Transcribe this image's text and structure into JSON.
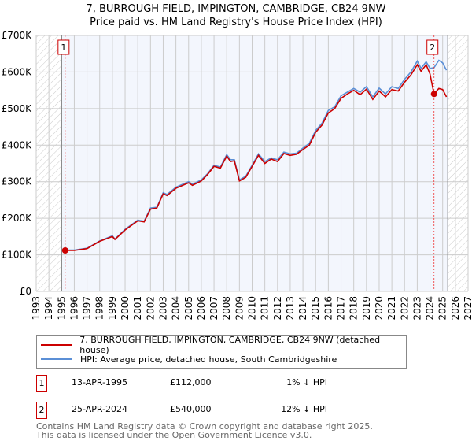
{
  "chart_data": {
    "type": "line",
    "title": "7, BURROUGH FIELD, IMPINGTON, CAMBRIDGE, CB24 9NW",
    "subtitle": "Price paid vs. HM Land Registry's House Price Index (HPI)",
    "xlim": [
      1993,
      2027
    ],
    "ylim": [
      0,
      700000
    ],
    "x_ticks": [
      "1993",
      "1994",
      "1995",
      "1996",
      "1997",
      "1998",
      "1999",
      "2000",
      "2001",
      "2002",
      "2003",
      "2004",
      "2005",
      "2006",
      "2007",
      "2008",
      "2009",
      "2010",
      "2011",
      "2012",
      "2013",
      "2014",
      "2015",
      "2016",
      "2017",
      "2018",
      "2019",
      "2020",
      "2021",
      "2022",
      "2023",
      "2024",
      "2025",
      "2026",
      "2027"
    ],
    "y_ticks": [
      {
        "v": 0,
        "label": "£0"
      },
      {
        "v": 100000,
        "label": "£100K"
      },
      {
        "v": 200000,
        "label": "£200K"
      },
      {
        "v": 300000,
        "label": "£300K"
      },
      {
        "v": 400000,
        "label": "£400K"
      },
      {
        "v": 500000,
        "label": "£500K"
      },
      {
        "v": 600000,
        "label": "£600K"
      },
      {
        "v": 700000,
        "label": "£700K"
      }
    ],
    "data_range": [
      1995.0,
      2025.4
    ],
    "series": [
      {
        "name": "7, BURROUGH FIELD, IMPINGTON, CAMBRIDGE, CB24 9NW (detached house)",
        "color": "#cc0000",
        "x": [
          1995.28,
          1996,
          1997,
          1998,
          1999,
          1999.2,
          2000,
          2001,
          2001.5,
          2002,
          2002.5,
          2003,
          2003.3,
          2004,
          2005,
          2005.3,
          2006,
          2006.5,
          2007,
          2007.5,
          2008,
          2008.3,
          2008.6,
          2009,
          2009.5,
          2010,
          2010.5,
          2011,
          2011.5,
          2012,
          2012.5,
          2013,
          2013.5,
          2014,
          2014.5,
          2015,
          2015.5,
          2016,
          2016.5,
          2017,
          2017.5,
          2018,
          2018.5,
          2019,
          2019.5,
          2020,
          2020.5,
          2021,
          2021.5,
          2022,
          2022.5,
          2023,
          2023.3,
          2023.7,
          2024,
          2024.32,
          2024.7,
          2025,
          2025.3
        ],
        "y": [
          112000,
          112000,
          117000,
          137000,
          150000,
          142000,
          168000,
          193000,
          190000,
          225000,
          228000,
          267000,
          262000,
          282000,
          297000,
          290000,
          302000,
          320000,
          342000,
          337000,
          370000,
          355000,
          357000,
          302000,
          312000,
          342000,
          372000,
          350000,
          362000,
          355000,
          377000,
          372000,
          375000,
          388000,
          400000,
          435000,
          455000,
          488000,
          500000,
          528000,
          540000,
          550000,
          538000,
          553000,
          525000,
          548000,
          532000,
          552000,
          548000,
          572000,
          592000,
          620000,
          602000,
          620000,
          595000,
          540000,
          555000,
          552000,
          532000
        ]
      },
      {
        "name": "HPI: Average price, detached house, South Cambridgeshire",
        "color": "#5b8fd6",
        "x": [
          1995.28,
          1996,
          1997,
          1998,
          1999,
          1999.2,
          2000,
          2001,
          2001.5,
          2002,
          2002.5,
          2003,
          2003.3,
          2004,
          2005,
          2005.3,
          2006,
          2006.5,
          2007,
          2007.5,
          2008,
          2008.3,
          2008.6,
          2009,
          2009.5,
          2010,
          2010.5,
          2011,
          2011.5,
          2012,
          2012.5,
          2013,
          2013.5,
          2014,
          2014.5,
          2015,
          2015.5,
          2016,
          2016.5,
          2017,
          2017.5,
          2018,
          2018.5,
          2019,
          2019.5,
          2020,
          2020.5,
          2021,
          2021.5,
          2022,
          2022.5,
          2023,
          2023.3,
          2023.7,
          2024,
          2024.32,
          2024.7,
          2025,
          2025.3
        ],
        "y": [
          113000,
          113000,
          118000,
          138000,
          152000,
          143000,
          170000,
          195000,
          192000,
          228000,
          230000,
          270000,
          265000,
          285000,
          300000,
          293000,
          305000,
          322000,
          345000,
          340000,
          374000,
          360000,
          360000,
          305000,
          315000,
          345000,
          376000,
          355000,
          365000,
          360000,
          381000,
          376000,
          378000,
          392000,
          405000,
          440000,
          460000,
          495000,
          505000,
          535000,
          545000,
          555000,
          545000,
          560000,
          532000,
          556000,
          540000,
          560000,
          555000,
          580000,
          600000,
          630000,
          610000,
          628000,
          610000,
          612000,
          632000,
          625000,
          605000
        ]
      }
    ],
    "transactions": [
      {
        "label": "1",
        "date": "13-APR-1995",
        "x": 1995.28,
        "price": "£112,000",
        "value": 112000,
        "hpi": "1% ↓ HPI"
      },
      {
        "label": "2",
        "date": "25-APR-2024",
        "x": 2024.32,
        "price": "£540,000",
        "value": 540000,
        "hpi": "12% ↓ HPI"
      }
    ]
  },
  "footer": {
    "line1": "Contains HM Land Registry data © Crown copyright and database right 2025.",
    "line2": "This data is licensed under the Open Government Licence v3.0."
  }
}
